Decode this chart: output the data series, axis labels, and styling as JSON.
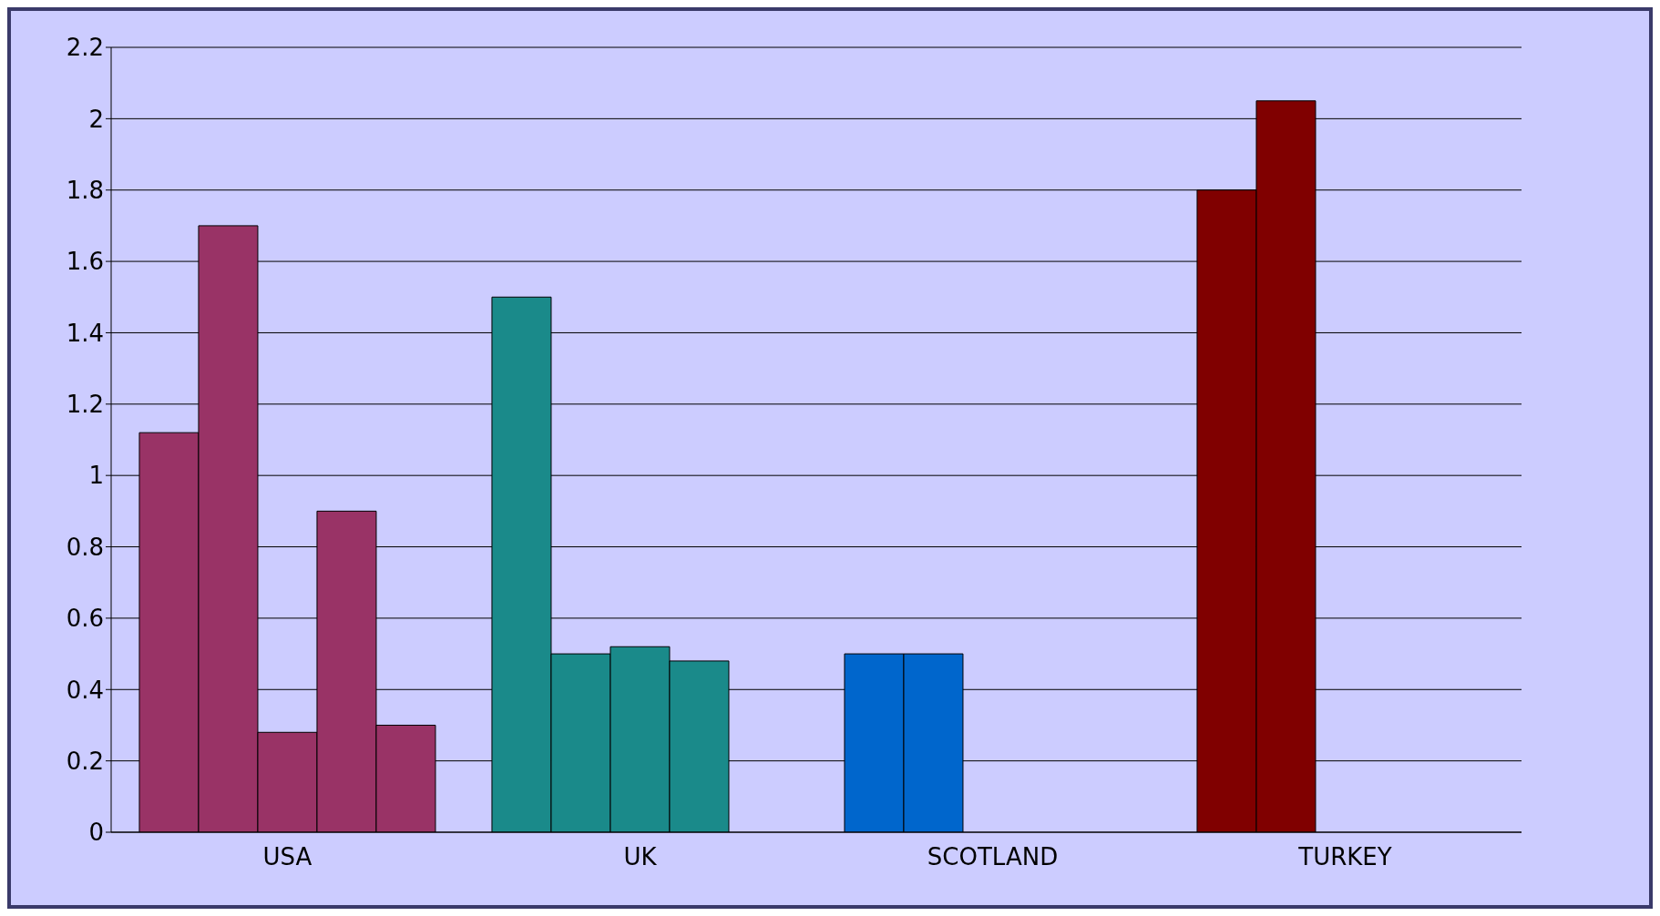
{
  "chart_data": {
    "type": "bar",
    "categories": [
      "USA",
      "UK",
      "SCOTLAND",
      "TURKEY"
    ],
    "series": [
      {
        "colors": [
          "#993366",
          "#1a8a8a",
          "#0066cc",
          "#800000"
        ],
        "values": [
          1.12,
          1.5,
          0.5,
          1.8
        ]
      },
      {
        "colors": [
          "#993366",
          "#1a8a8a",
          "#0066cc",
          "#800000"
        ],
        "values": [
          1.7,
          0.5,
          0.5,
          2.05
        ]
      },
      {
        "colors": [
          "#993366",
          "#1a8a8a",
          "#0066cc",
          "#800000"
        ],
        "values": [
          0.28,
          0.52,
          0,
          null
        ]
      },
      {
        "colors": [
          "#993366",
          "#1a8a8a",
          "#0066cc",
          "#800000"
        ],
        "values": [
          0.9,
          0.48,
          0,
          null
        ]
      },
      {
        "colors": [
          "#993366",
          "#1a8a8a",
          "#0066cc",
          "#800000"
        ],
        "values": [
          0.3,
          0,
          0,
          null
        ]
      }
    ],
    "ylim": [
      0,
      2.2
    ],
    "yticks": [
      0,
      0.2,
      0.4,
      0.6,
      0.8,
      1,
      1.2,
      1.4,
      1.6,
      1.8,
      2,
      2.2
    ],
    "grid": "y",
    "legend": false
  }
}
